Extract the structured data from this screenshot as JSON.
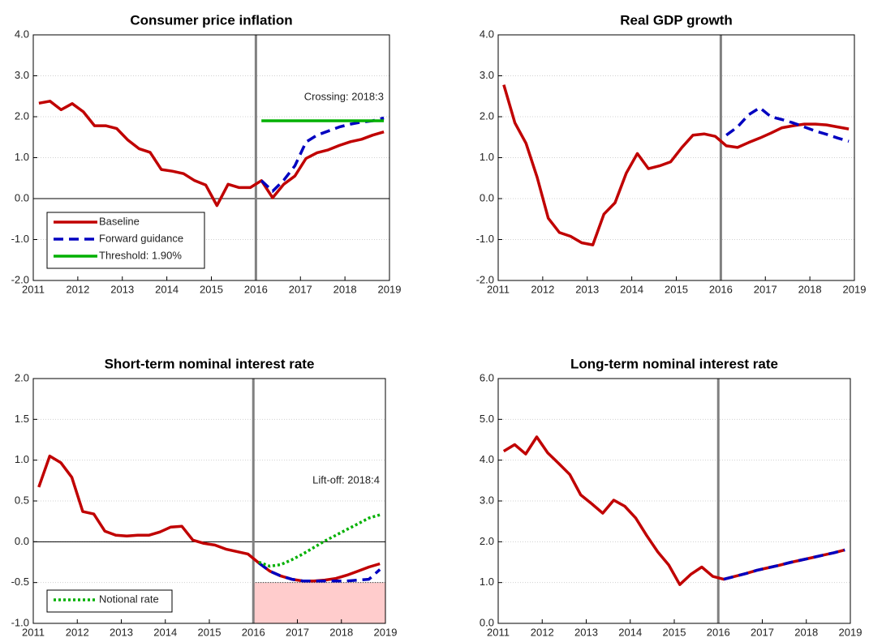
{
  "chart_data": [
    {
      "type": "line",
      "title": "Consumer price inflation",
      "x": [
        2011.125,
        2011.375,
        2011.625,
        2011.875,
        2012.125,
        2012.375,
        2012.625,
        2012.875,
        2013.125,
        2013.375,
        2013.625,
        2013.875,
        2014.125,
        2014.375,
        2014.625,
        2014.875,
        2015.125,
        2015.375,
        2015.625,
        2015.875,
        2016.125,
        2016.375,
        2016.625,
        2016.875,
        2017.125,
        2017.375,
        2017.625,
        2017.875,
        2018.125,
        2018.375,
        2018.625,
        2018.875
      ],
      "series": [
        {
          "name": "Baseline",
          "color": "#c00000",
          "style": "solid",
          "values": [
            2.33,
            2.38,
            2.17,
            2.32,
            2.12,
            1.78,
            1.78,
            1.71,
            1.43,
            1.22,
            1.13,
            0.71,
            0.67,
            0.61,
            0.44,
            0.33,
            -0.17,
            0.35,
            0.27,
            0.27,
            0.44,
            0.02,
            0.35,
            0.55,
            0.98,
            1.12,
            1.19,
            1.3,
            1.39,
            1.45,
            1.55,
            1.63
          ]
        },
        {
          "name": "Forward guidance",
          "color": "#0000c0",
          "style": "dashed",
          "values": [
            null,
            null,
            null,
            null,
            null,
            null,
            null,
            null,
            null,
            null,
            null,
            null,
            null,
            null,
            null,
            null,
            null,
            null,
            null,
            null,
            0.44,
            0.18,
            0.45,
            0.8,
            1.38,
            1.55,
            1.65,
            1.75,
            1.82,
            1.87,
            1.9,
            1.97
          ]
        },
        {
          "name": "Threshold: 1.90%",
          "color": "#00b000",
          "style": "solid",
          "values": [
            null,
            null,
            null,
            null,
            null,
            null,
            null,
            null,
            null,
            null,
            null,
            null,
            null,
            null,
            null,
            null,
            null,
            null,
            null,
            null,
            1.9,
            1.9,
            1.9,
            1.9,
            1.9,
            1.9,
            1.9,
            1.9,
            1.9,
            1.9,
            1.9,
            1.9
          ]
        }
      ],
      "annotation": "Crossing: 2018:3",
      "xlim": [
        2011,
        2019
      ],
      "xticks": [
        2011,
        2012,
        2013,
        2014,
        2015,
        2016,
        2017,
        2018,
        2019
      ],
      "ylim": [
        -2,
        4
      ],
      "yticks": [
        {
          "value": -2,
          "label": "-2.0"
        },
        {
          "value": -1,
          "label": "-1.0"
        },
        {
          "value": 0,
          "label": "0.0"
        },
        {
          "value": 1,
          "label": "1.0"
        },
        {
          "value": 2,
          "label": "2.0"
        },
        {
          "value": 3,
          "label": "3.0"
        },
        {
          "value": 4,
          "label": "4.0"
        }
      ],
      "grid": true,
      "hline": 0,
      "vline": 2016,
      "legend": "lower left"
    },
    {
      "type": "line",
      "title": "Real GDP growth",
      "x": [
        2011.125,
        2011.375,
        2011.625,
        2011.875,
        2012.125,
        2012.375,
        2012.625,
        2012.875,
        2013.125,
        2013.375,
        2013.625,
        2013.875,
        2014.125,
        2014.375,
        2014.625,
        2014.875,
        2015.125,
        2015.375,
        2015.625,
        2015.875,
        2016.125,
        2016.375,
        2016.625,
        2016.875,
        2017.125,
        2017.375,
        2017.625,
        2017.875,
        2018.125,
        2018.375,
        2018.625,
        2018.875
      ],
      "series": [
        {
          "color": "#c00000",
          "style": "solid",
          "values": [
            2.78,
            1.85,
            1.35,
            0.52,
            -0.48,
            -0.83,
            -0.92,
            -1.08,
            -1.13,
            -0.38,
            -0.1,
            0.62,
            1.1,
            0.73,
            0.8,
            0.9,
            1.25,
            1.55,
            1.58,
            1.52,
            1.29,
            1.25,
            1.37,
            1.48,
            1.6,
            1.73,
            1.78,
            1.82,
            1.82,
            1.8,
            1.75,
            1.7
          ]
        },
        {
          "color": "#0000c0",
          "style": "dashed",
          "values": [
            null,
            null,
            null,
            null,
            null,
            null,
            null,
            null,
            null,
            null,
            null,
            null,
            null,
            null,
            null,
            null,
            null,
            null,
            null,
            null,
            1.55,
            1.75,
            2.05,
            2.22,
            2.0,
            1.93,
            1.85,
            1.75,
            1.65,
            1.57,
            1.48,
            1.4
          ]
        }
      ],
      "xlim": [
        2011,
        2019
      ],
      "xticks": [
        2011,
        2012,
        2013,
        2014,
        2015,
        2016,
        2017,
        2018,
        2019
      ],
      "ylim": [
        -2,
        4
      ],
      "yticks": [
        {
          "value": -2,
          "label": "-2.0"
        },
        {
          "value": -1,
          "label": "-1.0"
        },
        {
          "value": 0,
          "label": "0.0"
        },
        {
          "value": 1,
          "label": "1.0"
        },
        {
          "value": 2,
          "label": "2.0"
        },
        {
          "value": 3,
          "label": "3.0"
        },
        {
          "value": 4,
          "label": "4.0"
        }
      ],
      "grid": true,
      "vline": 2016
    },
    {
      "type": "line",
      "title": "Short-term nominal interest rate",
      "x": [
        2011.125,
        2011.375,
        2011.625,
        2011.875,
        2012.125,
        2012.375,
        2012.625,
        2012.875,
        2013.125,
        2013.375,
        2013.625,
        2013.875,
        2014.125,
        2014.375,
        2014.625,
        2014.875,
        2015.125,
        2015.375,
        2015.625,
        2015.875,
        2016.125,
        2016.375,
        2016.625,
        2016.875,
        2017.125,
        2017.375,
        2017.625,
        2017.875,
        2018.125,
        2018.375,
        2018.625,
        2018.875
      ],
      "series": [
        {
          "color": "#c00000",
          "style": "solid",
          "values": [
            0.67,
            1.05,
            0.97,
            0.79,
            0.37,
            0.34,
            0.13,
            0.08,
            0.07,
            0.08,
            0.08,
            0.12,
            0.18,
            0.19,
            0.02,
            -0.02,
            -0.04,
            -0.09,
            -0.12,
            -0.15,
            -0.26,
            -0.36,
            -0.42,
            -0.46,
            -0.48,
            -0.48,
            -0.47,
            -0.45,
            -0.41,
            -0.36,
            -0.31,
            -0.27
          ]
        },
        {
          "color": "#0000c0",
          "style": "dashed",
          "values": [
            null,
            null,
            null,
            null,
            null,
            null,
            null,
            null,
            null,
            null,
            null,
            null,
            null,
            null,
            null,
            null,
            null,
            null,
            null,
            null,
            -0.26,
            -0.36,
            -0.42,
            -0.46,
            -0.48,
            -0.48,
            -0.48,
            -0.48,
            -0.48,
            -0.47,
            -0.46,
            -0.34
          ]
        },
        {
          "name": "Notional rate",
          "color": "#00b000",
          "style": "dotted",
          "values": [
            null,
            null,
            null,
            null,
            null,
            null,
            null,
            null,
            null,
            null,
            null,
            null,
            null,
            null,
            null,
            null,
            null,
            null,
            null,
            null,
            -0.25,
            -0.3,
            -0.28,
            -0.22,
            -0.15,
            -0.07,
            0.01,
            0.08,
            0.15,
            0.22,
            0.29,
            0.33
          ]
        }
      ],
      "annotation": "Lift-off: 2018:4",
      "shade": {
        "xlim": [
          2016,
          2019
        ],
        "ylim": [
          -1,
          -0.5
        ],
        "color": "#ffcccc"
      },
      "xlim": [
        2011,
        2019
      ],
      "xticks": [
        2011,
        2012,
        2013,
        2014,
        2015,
        2016,
        2017,
        2018,
        2019
      ],
      "ylim": [
        -1,
        2
      ],
      "yticks": [
        {
          "value": -1,
          "label": "-1.0"
        },
        {
          "value": -0.5,
          "label": "-0.5"
        },
        {
          "value": 0,
          "label": "0.0"
        },
        {
          "value": 0.5,
          "label": "0.5"
        },
        {
          "value": 1,
          "label": "1.0"
        },
        {
          "value": 1.5,
          "label": "1.5"
        },
        {
          "value": 2,
          "label": "2.0"
        }
      ],
      "grid": true,
      "hline": 0,
      "vline": 2016,
      "legend": "lower left"
    },
    {
      "type": "line",
      "title": "Long-term nominal interest rate",
      "x": [
        2011.125,
        2011.375,
        2011.625,
        2011.875,
        2012.125,
        2012.375,
        2012.625,
        2012.875,
        2013.125,
        2013.375,
        2013.625,
        2013.875,
        2014.125,
        2014.375,
        2014.625,
        2014.875,
        2015.125,
        2015.375,
        2015.625,
        2015.875,
        2016.125,
        2016.375,
        2016.625,
        2016.875,
        2017.125,
        2017.375,
        2017.625,
        2017.875,
        2018.125,
        2018.375,
        2018.625,
        2018.875
      ],
      "series": [
        {
          "color": "#c00000",
          "style": "solid",
          "values": [
            4.22,
            4.38,
            4.15,
            4.57,
            4.18,
            3.92,
            3.65,
            3.15,
            2.93,
            2.7,
            3.02,
            2.87,
            2.58,
            2.15,
            1.75,
            1.43,
            0.95,
            1.2,
            1.38,
            1.15,
            1.08,
            1.15,
            1.22,
            1.3,
            1.36,
            1.42,
            1.49,
            1.55,
            1.61,
            1.67,
            1.73,
            1.8
          ]
        },
        {
          "color": "#0000c0",
          "style": "dashed",
          "values": [
            null,
            null,
            null,
            null,
            null,
            null,
            null,
            null,
            null,
            null,
            null,
            null,
            null,
            null,
            null,
            null,
            null,
            null,
            null,
            null,
            1.08,
            1.15,
            1.22,
            1.3,
            1.36,
            1.42,
            1.49,
            1.55,
            1.61,
            1.67,
            1.73,
            1.8
          ]
        }
      ],
      "xlim": [
        2011,
        2019
      ],
      "xticks": [
        2011,
        2012,
        2013,
        2014,
        2015,
        2016,
        2017,
        2018,
        2019
      ],
      "ylim": [
        0,
        6
      ],
      "yticks": [
        {
          "value": 0,
          "label": "0.0"
        },
        {
          "value": 1,
          "label": "1.0"
        },
        {
          "value": 2,
          "label": "2.0"
        },
        {
          "value": 3,
          "label": "3.0"
        },
        {
          "value": 4,
          "label": "4.0"
        },
        {
          "value": 5,
          "label": "5.0"
        },
        {
          "value": 6,
          "label": "6.0"
        }
      ],
      "grid": true,
      "vline": 2016
    }
  ]
}
